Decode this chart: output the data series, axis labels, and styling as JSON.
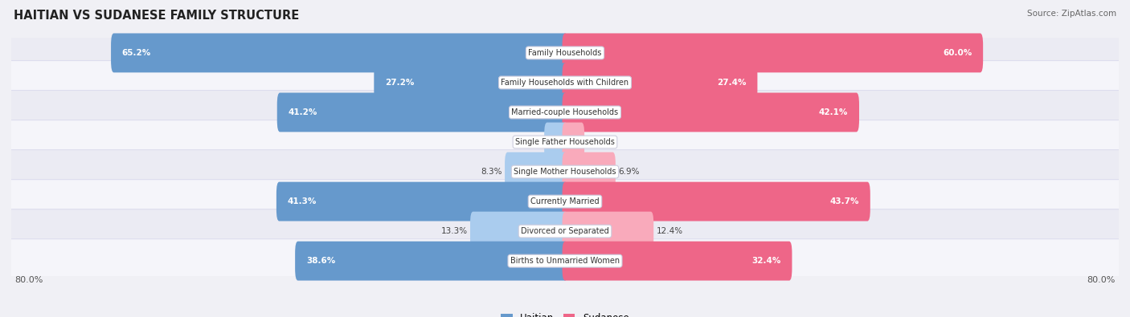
{
  "title": "HAITIAN VS SUDANESE FAMILY STRUCTURE",
  "source": "Source: ZipAtlas.com",
  "categories": [
    "Family Households",
    "Family Households with Children",
    "Married-couple Households",
    "Single Father Households",
    "Single Mother Households",
    "Currently Married",
    "Divorced or Separated",
    "Births to Unmarried Women"
  ],
  "haitian_values": [
    65.2,
    27.2,
    41.2,
    2.6,
    8.3,
    41.3,
    13.3,
    38.6
  ],
  "sudanese_values": [
    60.0,
    27.4,
    42.1,
    2.4,
    6.9,
    43.7,
    12.4,
    32.4
  ],
  "max_val": 80.0,
  "haitian_color_strong": "#6699cc",
  "sudanese_color_strong": "#ee6688",
  "haitian_color_light": "#aaccee",
  "sudanese_color_light": "#f9aabb",
  "bg_color": "#f0f0f5",
  "row_colors": [
    "#ebebf3",
    "#f5f5fa"
  ],
  "axis_label_left": "80.0%",
  "axis_label_right": "80.0%",
  "threshold_strong": 20.0
}
